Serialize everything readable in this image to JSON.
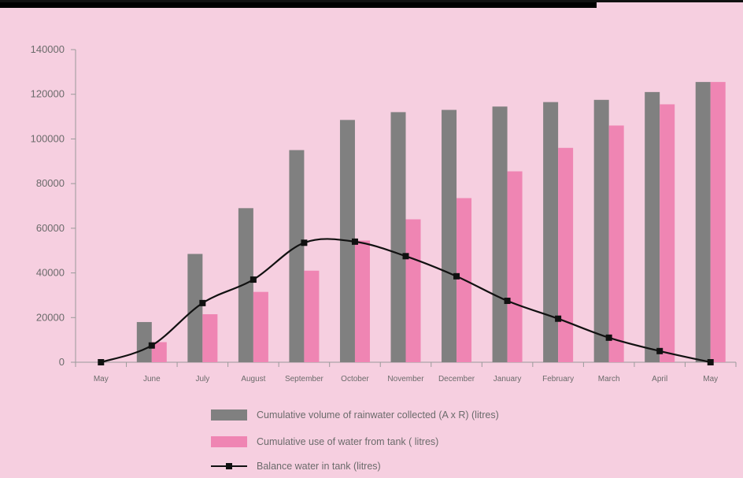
{
  "chart_data": {
    "type": "bar",
    "categories": [
      "May",
      "June",
      "July",
      "August",
      "September",
      "October",
      "November",
      "December",
      "January",
      "February",
      "March",
      "April",
      "May"
    ],
    "series": [
      {
        "name": "Cumulative volume of rainwater collected (A x R) (litres)",
        "kind": "bar",
        "color": "#808080",
        "values": [
          0,
          18000,
          48500,
          69000,
          95000,
          108500,
          112000,
          113000,
          114500,
          116500,
          117500,
          121000,
          125500
        ]
      },
      {
        "name": "Cumulative use of water from tank ( litres)",
        "kind": "bar",
        "color": "#ef85b3",
        "values": [
          0,
          9000,
          21500,
          31500,
          41000,
          54500,
          64000,
          73500,
          85500,
          96000,
          106000,
          115500,
          125500
        ]
      },
      {
        "name": "Balance water in tank (litres)",
        "kind": "line",
        "color": "#111111",
        "values": [
          0,
          7500,
          26500,
          37000,
          53500,
          54000,
          47500,
          38500,
          27500,
          19500,
          11000,
          5000,
          0
        ]
      }
    ],
    "yticks": [
      "0",
      "20000",
      "40000",
      "60000",
      "80000",
      "100000",
      "120000",
      "140000"
    ],
    "ylim": [
      0,
      140000
    ],
    "legend_position": "bottom",
    "grid": false
  }
}
